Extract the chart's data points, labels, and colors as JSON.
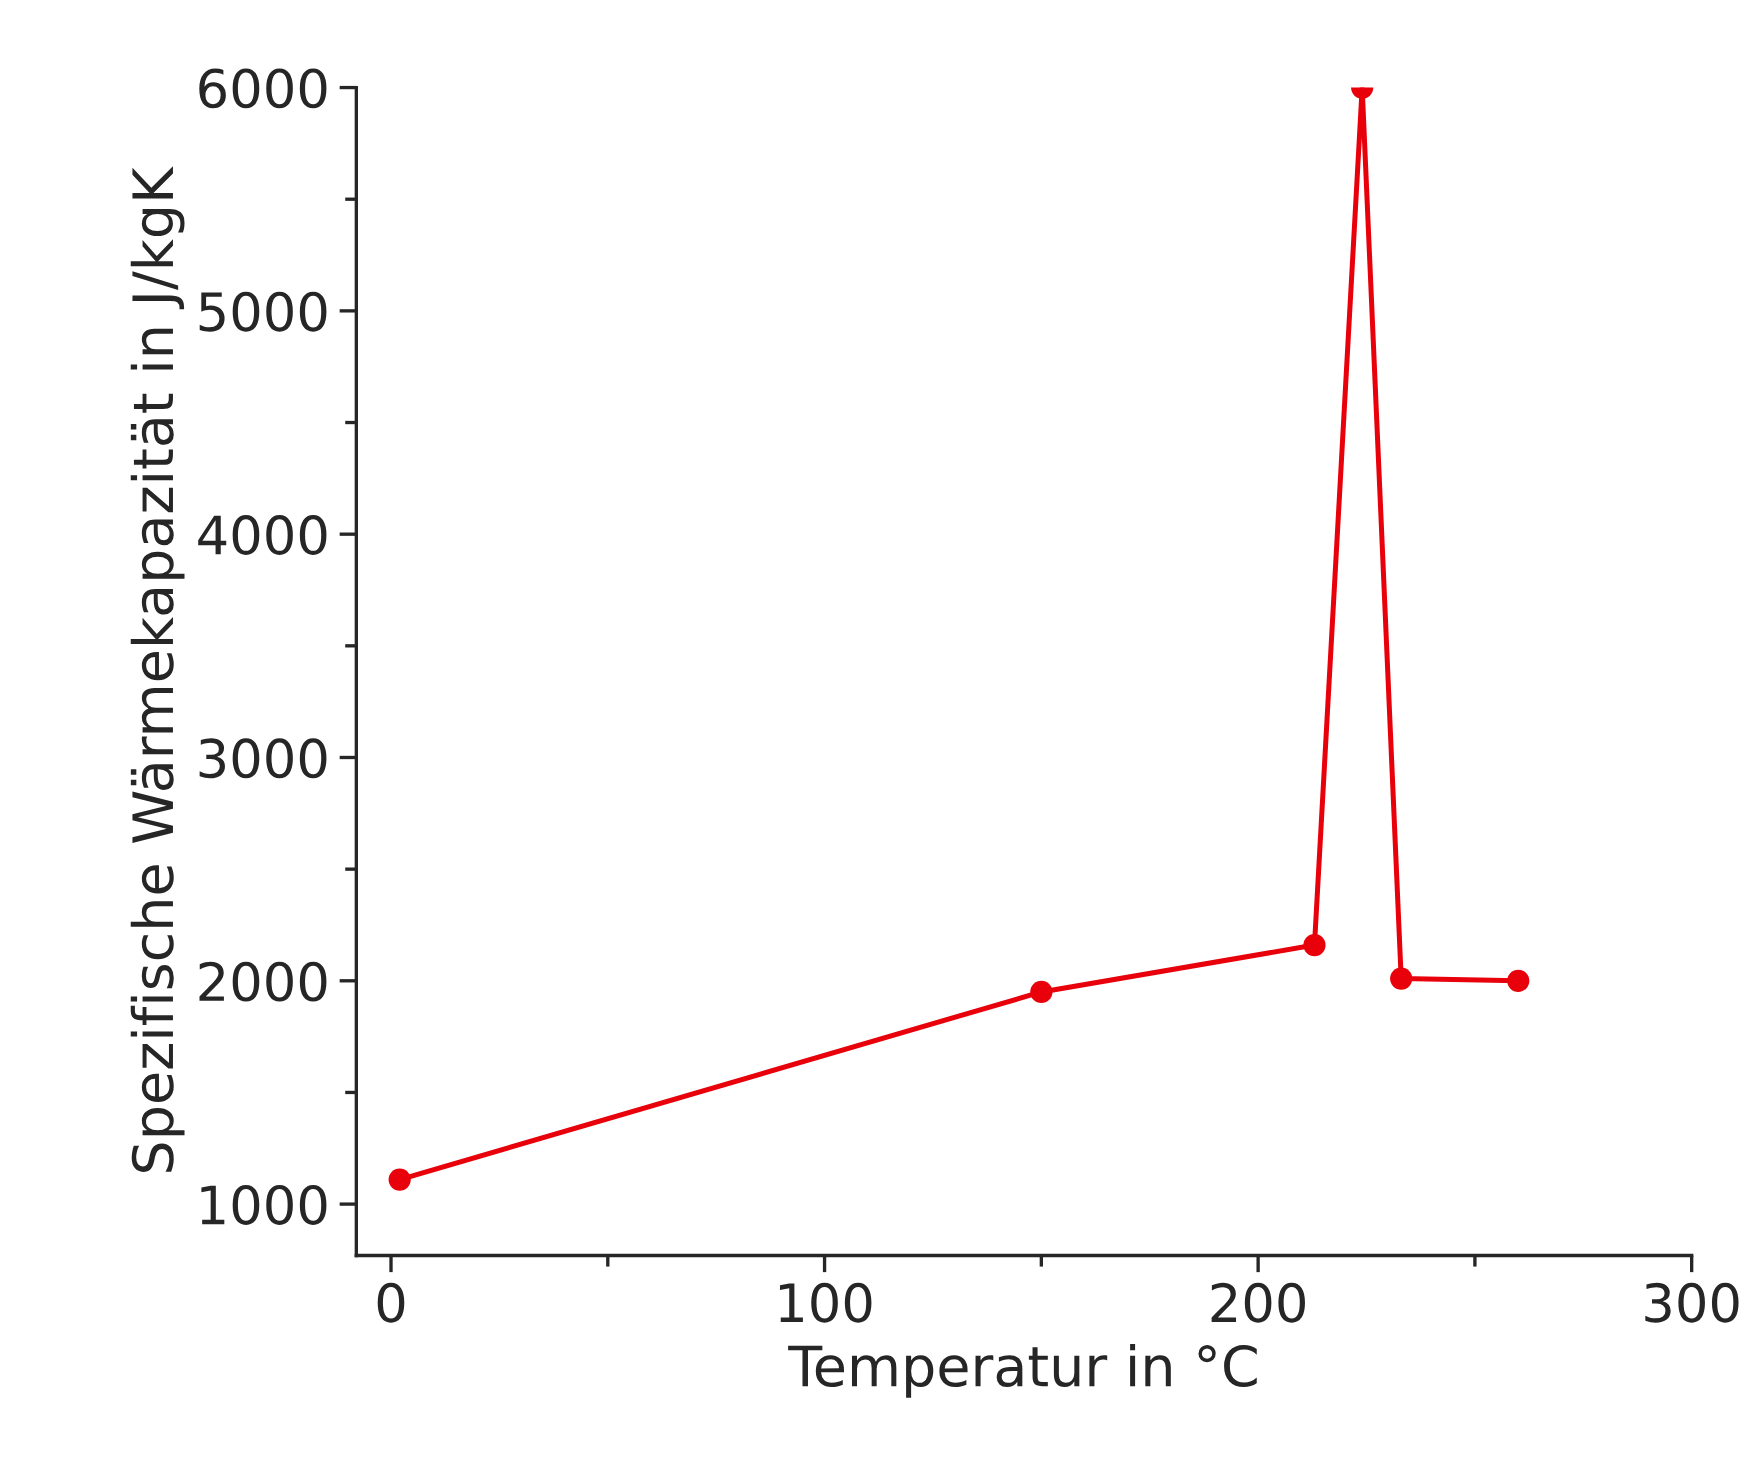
{
  "chart_data": {
    "type": "line",
    "xlabel": "Temperatur in °C",
    "ylabel": "Spezifische Wärmekapazität in J/kgK",
    "x": [
      2,
      150,
      213,
      224,
      233,
      260
    ],
    "series": [
      {
        "color": "#e8000b",
        "values": [
          1110,
          1950,
          2160,
          6000,
          2010,
          2000
        ]
      }
    ],
    "marker": "circle",
    "line_style": "solid",
    "grid": false,
    "legend": false,
    "xlim": [
      -8,
      300
    ],
    "ylim": [
      770,
      6000
    ],
    "xticks": [
      0,
      {
        "value": 50,
        "label": null
      },
      100,
      {
        "value": 150,
        "label": null
      },
      200,
      {
        "value": 250,
        "label": null
      },
      300
    ],
    "yticks": [
      1000,
      {
        "value": 1500,
        "label": null
      },
      2000,
      {
        "value": 2500,
        "label": null
      },
      3000,
      {
        "value": 3500,
        "label": null
      },
      4000,
      {
        "value": 4500,
        "label": null
      },
      5000,
      {
        "value": 5500,
        "label": null
      },
      6000
    ]
  }
}
